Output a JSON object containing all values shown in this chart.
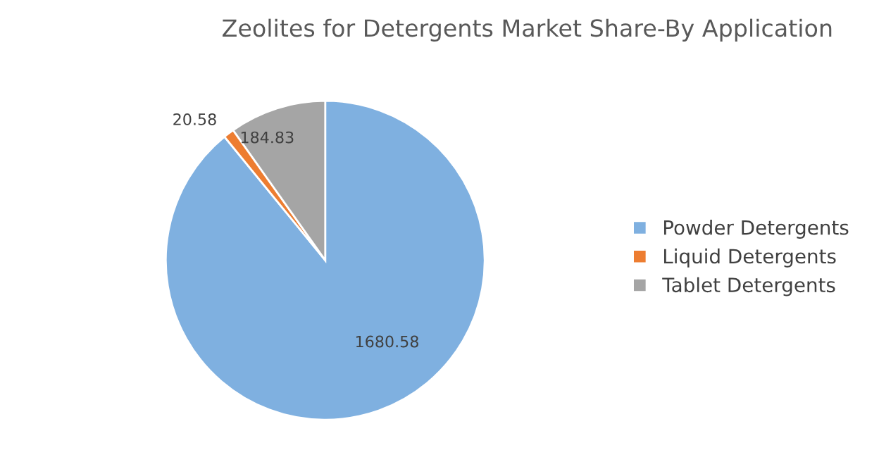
{
  "chart_data": {
    "type": "pie",
    "title": "Zeolites for Detergents Market Share-By Application",
    "categories": [
      "Powder Detergents",
      "Liquid Detergents",
      "Tablet Detergents"
    ],
    "values": [
      1680.58,
      20.58,
      184.83
    ],
    "colors": [
      "#7fb0e0",
      "#ed7d31",
      "#a5a5a5"
    ],
    "data_labels": true,
    "legend": "right"
  }
}
